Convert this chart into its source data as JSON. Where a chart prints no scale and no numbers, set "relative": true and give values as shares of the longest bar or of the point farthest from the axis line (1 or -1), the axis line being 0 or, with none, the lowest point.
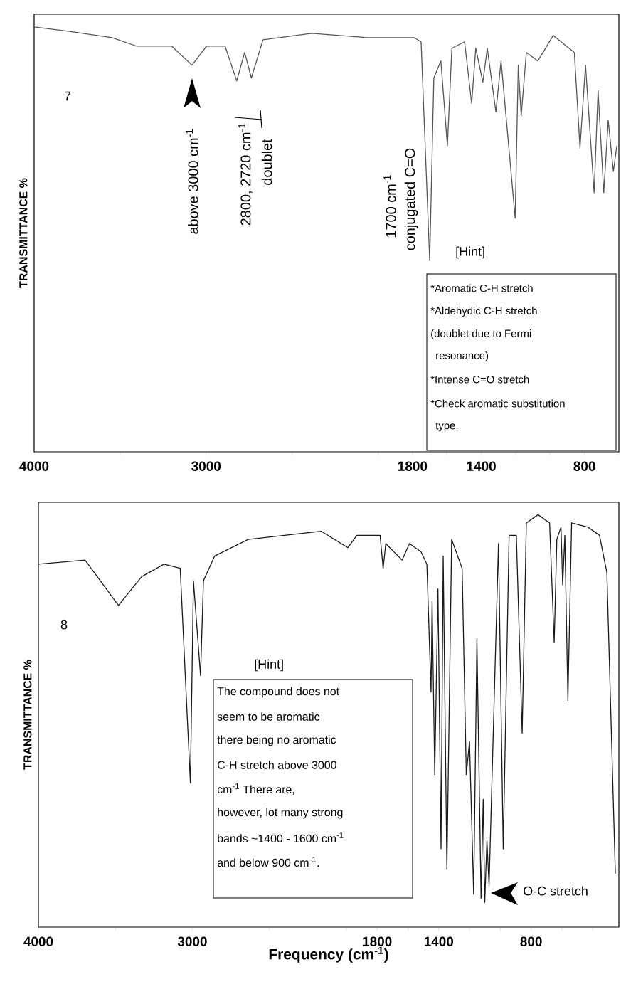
{
  "chart_data": [
    {
      "type": "line",
      "relative": true,
      "color": "#555555",
      "ylabel": "TRANSMITTANCE %",
      "x": [
        4000,
        3802,
        3547,
        3405,
        3201,
        3082,
        2997,
        2890,
        2822,
        2776,
        2737,
        2669,
        2386,
        2068,
        1791,
        1750,
        1700,
        1676,
        1635,
        1597,
        1571,
        1497,
        1456,
        1432,
        1391,
        1365,
        1315,
        1285,
        1203,
        1185,
        1168,
        1138,
        1071,
        982,
        859,
        826,
        794,
        744,
        721,
        688,
        662,
        632,
        612
      ],
      "values": [
        1.0,
        0.99,
        0.975,
        0.955,
        0.955,
        0.91,
        0.955,
        0.955,
        0.873,
        0.94,
        0.88,
        0.97,
        0.985,
        0.975,
        0.975,
        0.965,
        0.45,
        0.88,
        0.92,
        0.72,
        0.95,
        0.965,
        0.82,
        0.95,
        0.87,
        0.95,
        0.8,
        0.92,
        0.55,
        0.91,
        0.79,
        0.94,
        0.92,
        0.98,
        0.94,
        0.715,
        0.91,
        0.61,
        0.85,
        0.61,
        0.78,
        0.66,
        0.72
      ],
      "xlim": [
        4000,
        600
      ],
      "xticks": [
        4000,
        {
          "value": 3500,
          "label": null
        },
        3000,
        {
          "value": 2500,
          "label": null
        },
        {
          "value": 2000,
          "label": null
        },
        1800,
        {
          "value": 1600,
          "label": null
        },
        1400,
        {
          "value": 1200,
          "label": null
        },
        {
          "value": 1000,
          "label": null
        },
        800,
        {
          "value": 600,
          "label": null
        }
      ],
      "annotations": [
        "7",
        "above 3000 cm$^{-1}$",
        "2800, 2720 cm$^{-1}$",
        "doublet",
        "1700 cm$^{-1}$",
        "conjugated C=O",
        "[Hint]",
        "*Aromatic C-H stretch",
        "*Aldehydic C-H stretch",
        "(doublet due to Fermi",
        "resonance)",
        "*Intense C=O stretch",
        "*Check aromatic substitution",
        "type."
      ]
    },
    {
      "type": "line",
      "relative": true,
      "color": "#1a1a1a",
      "ylabel": "TRANSMITTANCE %",
      "xlabel": "Frequency (cm$^{-1}$)",
      "x": [
        4000,
        3697,
        3480,
        3329,
        3184,
        3079,
        3013,
        2993,
        2947,
        2928,
        2855,
        2638,
        2164,
        1990,
        1932,
        1781,
        1761,
        1744,
        1638,
        1590,
        1515,
        1477,
        1450,
        1443,
        1426,
        1405,
        1385,
        1371,
        1347,
        1316,
        1248,
        1221,
        1200,
        1173,
        1152,
        1125,
        1111,
        1101,
        1087,
        1073,
        1012,
        981,
        943,
        896,
        858,
        831,
        755,
        680,
        650,
        633,
        606,
        595,
        581,
        561,
        537,
        431,
        356,
        308,
        253
      ],
      "values": [
        0.88,
        0.89,
        0.78,
        0.85,
        0.88,
        0.87,
        0.35,
        0.84,
        0.61,
        0.84,
        0.9,
        0.94,
        0.96,
        0.92,
        0.95,
        0.95,
        0.87,
        0.93,
        0.89,
        0.93,
        0.91,
        0.88,
        0.57,
        0.79,
        0.37,
        0.82,
        0.19,
        0.9,
        0.14,
        0.94,
        0.87,
        0.37,
        0.45,
        0.08,
        0.7,
        0.07,
        0.31,
        0.06,
        0.21,
        0.1,
        0.93,
        0.19,
        0.95,
        0.95,
        0.47,
        0.98,
        1.0,
        0.98,
        0.69,
        0.94,
        0.97,
        0.83,
        0.95,
        0.55,
        0.98,
        0.97,
        0.95,
        0.86,
        0.13
      ],
      "xlim": [
        4000,
        230
      ],
      "xticks": [
        4000,
        {
          "value": 3500,
          "label": null
        },
        3000,
        {
          "value": 2500,
          "label": null
        },
        {
          "value": 2000,
          "label": null
        },
        1800,
        {
          "value": 1600,
          "label": null
        },
        1400,
        {
          "value": 1200,
          "label": null
        },
        {
          "value": 1000,
          "label": null
        },
        800,
        {
          "value": 600,
          "label": null
        },
        {
          "value": 400,
          "label": null
        }
      ],
      "annotations": [
        "8",
        "[Hint]",
        "The compound does not",
        "seem to be aromatic",
        "there being no aromatic",
        "C-H stretch above 3000",
        "cm$^{-1}$ There are,",
        "however, lot many strong",
        "bands ~1400 - 1600 cm$^{-1}$",
        "and below 900 cm$^{-1}$.",
        "O-C stretch"
      ]
    }
  ]
}
